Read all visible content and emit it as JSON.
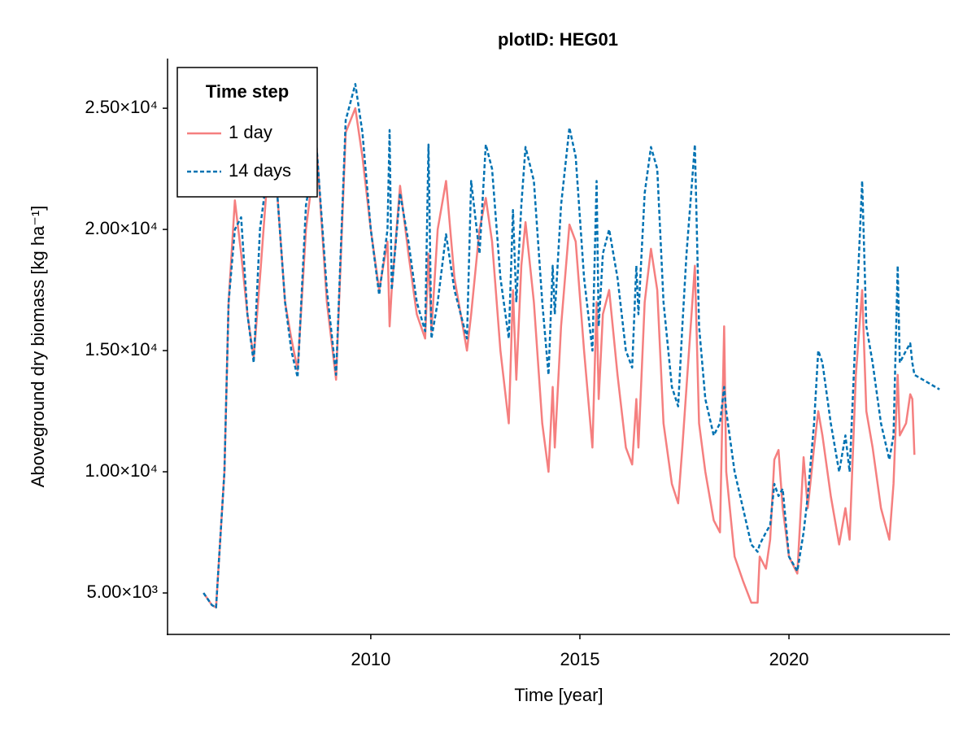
{
  "chart_data": {
    "type": "line",
    "title": "plotID: HEG01",
    "x_label": "Time [year]",
    "y_label": "Aboveground dry biomass [kg ha⁻¹]",
    "legend_title": "Time step",
    "legend": "top-left",
    "grid": false,
    "xlim": [
      2005.14,
      2023.85
    ],
    "xticks": [
      2010,
      2015,
      2020
    ],
    "ylim": [
      3290,
      27050
    ],
    "yticks": [
      {
        "value": 5000,
        "label": "5.00×10³"
      },
      {
        "value": 10000,
        "label": "1.00×10⁴"
      },
      {
        "value": 15000,
        "label": "1.50×10⁴"
      },
      {
        "value": 20000,
        "label": "2.00×10⁴"
      },
      {
        "value": 25000,
        "label": "2.50×10⁴"
      }
    ],
    "x": [
      2006.0,
      2006.2,
      2006.3,
      2006.5,
      2006.6,
      2006.75,
      2006.9,
      2007.05,
      2007.2,
      2007.35,
      2007.5,
      2007.7,
      2007.95,
      2008.1,
      2008.25,
      2008.45,
      2008.7,
      2008.95,
      2009.17,
      2009.4,
      2009.63,
      2009.8,
      2010.0,
      2010.2,
      2010.4,
      2010.45,
      2010.5,
      2010.7,
      2010.9,
      2011.1,
      2011.3,
      2011.38,
      2011.45,
      2011.6,
      2011.8,
      2012.0,
      2012.3,
      2012.4,
      2012.6,
      2012.75,
      2012.9,
      2013.1,
      2013.3,
      2013.4,
      2013.48,
      2013.6,
      2013.7,
      2013.9,
      2014.1,
      2014.25,
      2014.35,
      2014.4,
      2014.55,
      2014.75,
      2014.9,
      2015.1,
      2015.3,
      2015.4,
      2015.45,
      2015.55,
      2015.7,
      2015.9,
      2016.1,
      2016.25,
      2016.35,
      2016.4,
      2016.55,
      2016.7,
      2016.85,
      2017.0,
      2017.2,
      2017.35,
      2017.45,
      2017.55,
      2017.75,
      2017.85,
      2018.0,
      2018.2,
      2018.35,
      2018.45,
      2018.5,
      2018.7,
      2018.9,
      2019.1,
      2019.25,
      2019.3,
      2019.45,
      2019.55,
      2019.65,
      2019.75,
      2019.85,
      2020.0,
      2020.2,
      2020.35,
      2020.45,
      2020.6,
      2020.7,
      2020.8,
      2021.0,
      2021.2,
      2021.35,
      2021.45,
      2021.6,
      2021.75,
      2021.85,
      2022.0,
      2022.2,
      2022.4,
      2022.5,
      2022.6,
      2022.65,
      2022.8,
      2022.9,
      2022.95,
      2023.0,
      2023.6
    ],
    "series": [
      {
        "name": "1 day",
        "color": "#f57f7f",
        "linestyle": "solid",
        "values": [
          5000,
          4500,
          4400,
          10000,
          17000,
          21200,
          19000,
          16500,
          14700,
          18000,
          21500,
          23000,
          17000,
          15500,
          14200,
          20000,
          23500,
          17000,
          13800,
          24000,
          25000,
          23000,
          20000,
          17500,
          19500,
          16000,
          17500,
          21800,
          19000,
          16500,
          15500,
          19000,
          15800,
          20000,
          22000,
          18000,
          15000,
          16500,
          20000,
          21300,
          19500,
          15000,
          12000,
          17500,
          13800,
          18500,
          20300,
          17000,
          12000,
          10000,
          13500,
          11000,
          16000,
          20200,
          19500,
          15000,
          11000,
          17000,
          13000,
          16500,
          17500,
          14000,
          11000,
          10300,
          13000,
          11000,
          17000,
          19200,
          17500,
          12000,
          9500,
          8700,
          11000,
          13500,
          18500,
          12000,
          10000,
          8000,
          7500,
          16000,
          10000,
          6500,
          5500,
          4600,
          4600,
          6500,
          6000,
          7200,
          10500,
          10900,
          8500,
          6500,
          5800,
          10600,
          8500,
          11000,
          12500,
          11500,
          9000,
          7000,
          8500,
          7200,
          14000,
          17500,
          12500,
          11000,
          8500,
          7200,
          9500,
          14000,
          11500,
          12000,
          13200,
          13000,
          10700,
          null
        ]
      },
      {
        "name": "14 days",
        "color": "#0072b2",
        "linestyle": "dashed",
        "values": [
          5000,
          4500,
          4400,
          10000,
          17000,
          20000,
          20500,
          16500,
          14500,
          20000,
          22000,
          23000,
          17000,
          15000,
          13900,
          21000,
          23500,
          17500,
          14000,
          24500,
          26000,
          24000,
          20000,
          17300,
          20000,
          24100,
          17500,
          21500,
          19500,
          17000,
          15800,
          23500,
          15500,
          17000,
          19800,
          17500,
          15500,
          22000,
          19000,
          23500,
          22500,
          18000,
          15500,
          20800,
          17000,
          21000,
          23400,
          22000,
          17000,
          14000,
          18500,
          16500,
          21000,
          24200,
          23000,
          18000,
          15000,
          22000,
          16000,
          19000,
          20000,
          18000,
          15000,
          14300,
          18500,
          16500,
          21500,
          23400,
          22500,
          17000,
          13500,
          12700,
          16000,
          19000,
          23500,
          16000,
          13000,
          11500,
          12000,
          13500,
          12500,
          10000,
          8500,
          7000,
          6700,
          7000,
          7500,
          7800,
          9500,
          9000,
          9300,
          6500,
          5900,
          7500,
          9000,
          12000,
          15000,
          14500,
          12000,
          10000,
          11500,
          10000,
          16000,
          22000,
          16000,
          14500,
          12000,
          10500,
          11500,
          18500,
          14500,
          15000,
          15300,
          14500,
          14000,
          13400
        ]
      }
    ]
  }
}
